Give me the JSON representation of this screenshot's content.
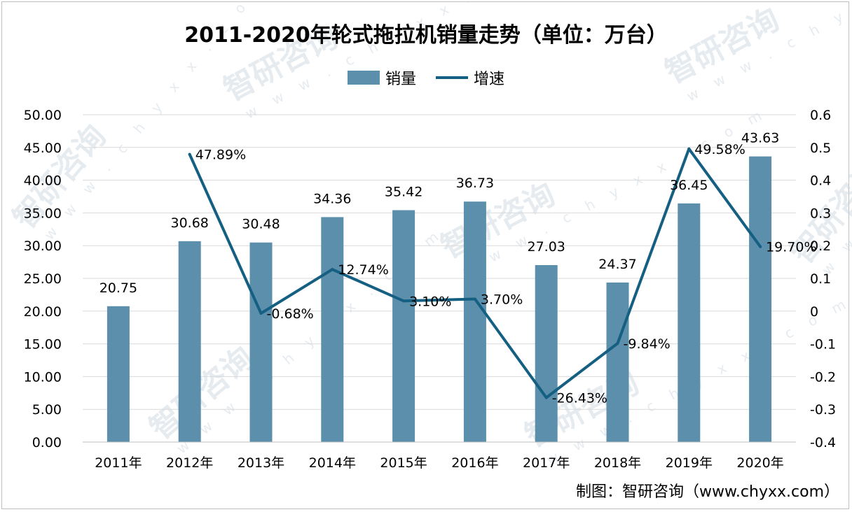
{
  "chart_data": {
    "type": "bar",
    "title": "2011-2020年轮式拖拉机销量走势（单位：万台）",
    "categories": [
      "2011年",
      "2012年",
      "2013年",
      "2014年",
      "2015年",
      "2016年",
      "2017年",
      "2018年",
      "2019年",
      "2020年"
    ],
    "series": [
      {
        "name": "销量",
        "type": "bar",
        "axis": "left",
        "color": "#5b8fab",
        "values": [
          20.75,
          30.68,
          30.48,
          34.36,
          35.42,
          36.73,
          27.03,
          24.37,
          36.45,
          43.63
        ],
        "labels": [
          "20.75",
          "30.68",
          "30.48",
          "34.36",
          "35.42",
          "36.73",
          "27.03",
          "24.37",
          "36.45",
          "43.63"
        ]
      },
      {
        "name": "增速",
        "type": "line",
        "axis": "right",
        "color": "#156082",
        "values": [
          null,
          0.4789,
          -0.0068,
          0.1274,
          0.031,
          0.037,
          -0.2643,
          -0.0984,
          0.4958,
          0.197
        ],
        "labels": [
          "",
          "47.89%",
          "-0.68%",
          "12.74%",
          "3.10%",
          "3.70%",
          "-26.43%",
          "-9.84%",
          "49.58%",
          "19.70%"
        ]
      }
    ],
    "yleft": {
      "min": 0,
      "max": 50,
      "step": 5,
      "ticks": [
        "0.00",
        "5.00",
        "10.00",
        "15.00",
        "20.00",
        "25.00",
        "30.00",
        "35.00",
        "40.00",
        "45.00",
        "50.00"
      ]
    },
    "yright": {
      "min": -0.4,
      "max": 0.6,
      "step": 0.1,
      "ticks": [
        "-0.4",
        "-0.3",
        "-0.2",
        "-0.1",
        "0",
        "0.1",
        "0.2",
        "0.3",
        "0.4",
        "0.5",
        "0.6"
      ]
    },
    "grid": true,
    "legend": "top-center"
  },
  "source": "制图：智研咨询（www.chyxx.com）",
  "watermark": {
    "brand": "智研咨询",
    "url": "w w w . c h y x x . c o m"
  }
}
